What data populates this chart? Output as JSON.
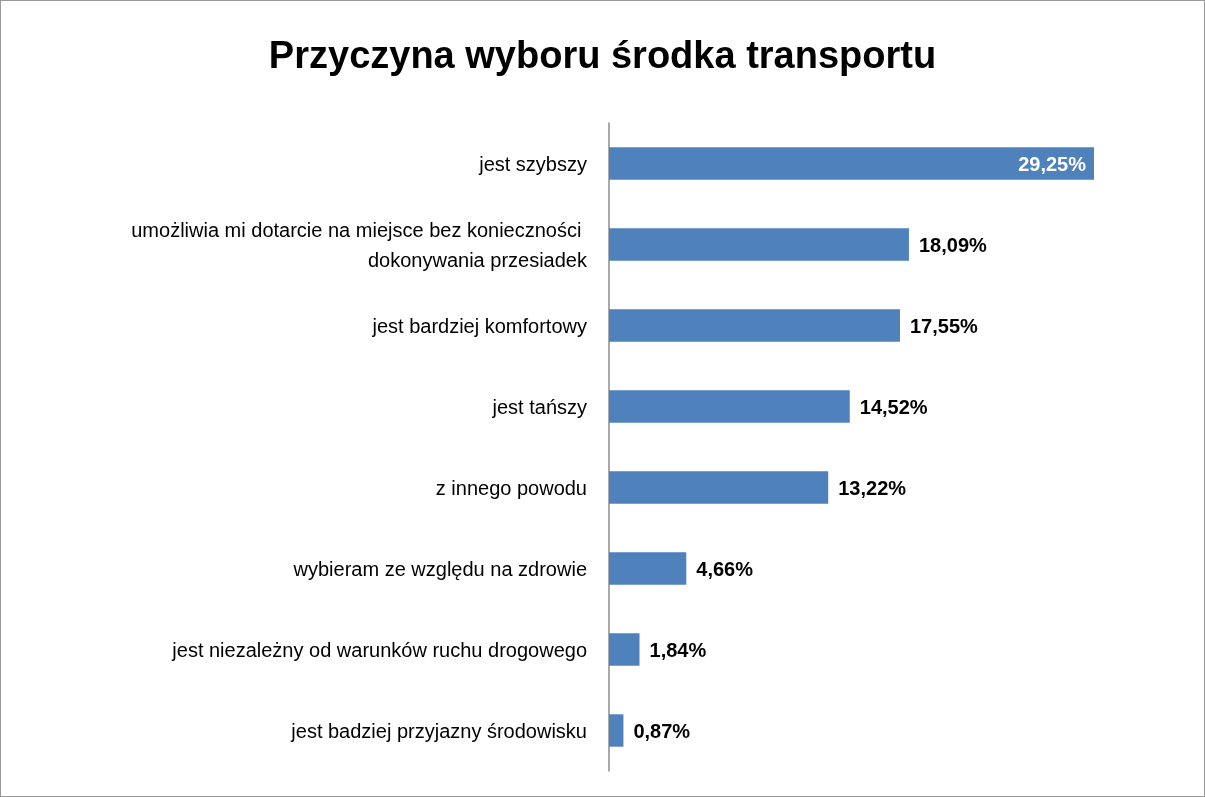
{
  "chart_data": {
    "type": "bar",
    "orientation": "horizontal",
    "title": "Przyczyna wyboru środka transportu",
    "categories": [
      "jest szybszy",
      "umożliwia mi dotarcie na miejsce bez konieczności dokonywania przesiadek",
      "jest bardziej komfortowy",
      "jest tańszy",
      "z innego powodu",
      "wybieram ze względu na zdrowie",
      "jest niezależny od warunków ruchu drogowego",
      "jest badziej przyjazny środowisku"
    ],
    "values": [
      29.25,
      18.09,
      17.55,
      14.52,
      13.22,
      4.66,
      1.84,
      0.87
    ],
    "value_labels": [
      "29,25%",
      "18,09%",
      "17,55%",
      "14,52%",
      "13,22%",
      "4,66%",
      "1,84%",
      "0,87%"
    ],
    "color": "#4f81bd"
  }
}
